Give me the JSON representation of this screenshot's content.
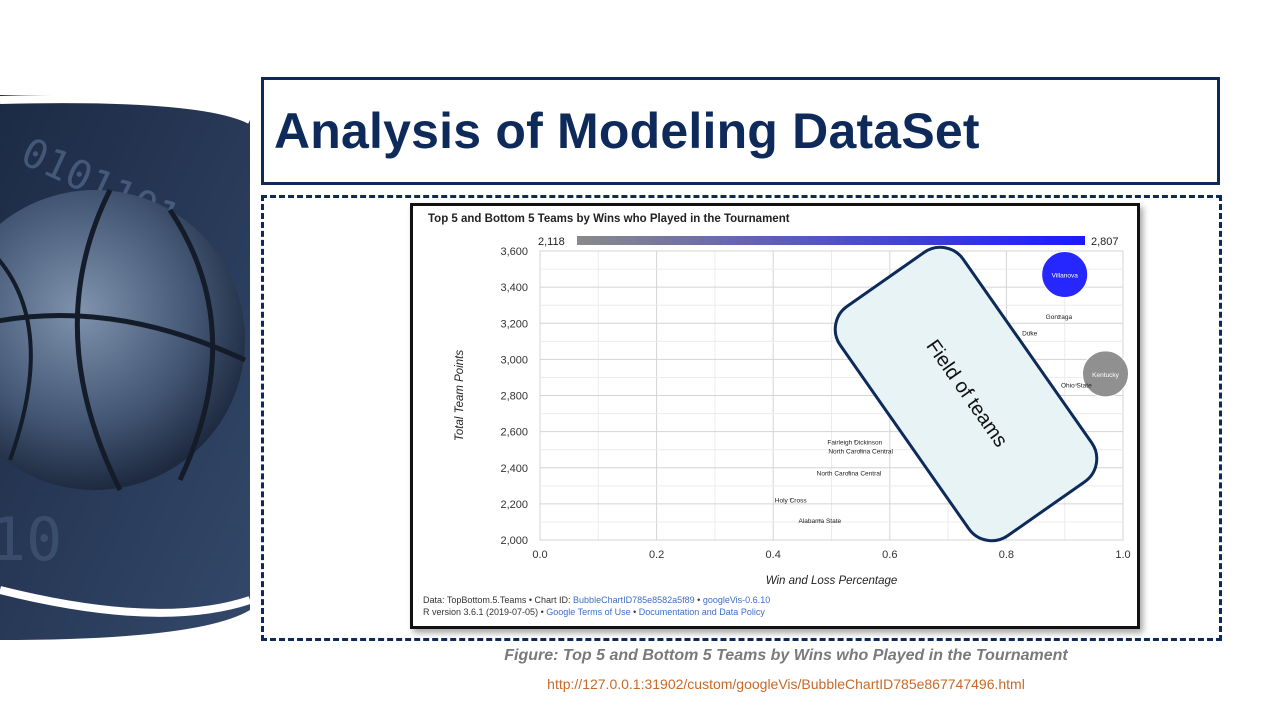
{
  "slide": {
    "title": "Analysis of Modeling DataSet",
    "caption": "Figure: Top 5 and Bottom 5 Teams by Wins who Played in the Tournament",
    "url": "http://127.0.0.1:31902/custom/googleVis/BubbleChartID785e867747496.html",
    "callout": "Field of teams"
  },
  "footer": {
    "line1_prefix": "Data: TopBottom.5.Teams • Chart ID: ",
    "chart_id": "BubbleChartID785e8582a5f89",
    "sep": " • ",
    "gvis": "googleVis-0.6.10",
    "line2_prefix": "R version 3.6.1 (2019-07-05) • ",
    "terms": "Google Terms of Use",
    "docs": "Documentation and Data Policy"
  },
  "colors": {
    "title": "#0e2a5a",
    "bubble_high": "#1a1aff",
    "bubble_low": "#8a8a8a",
    "callout_fill": "#e8f3f5"
  },
  "chart_data": {
    "type": "scatter",
    "title": "Top 5 and Bottom 5 Teams by Wins who Played in the Tournament",
    "xlabel": "Win and Loss Percentage",
    "ylabel": "Total Team Points",
    "xlim": [
      0.0,
      1.0
    ],
    "ylim": [
      2000,
      3600
    ],
    "x_ticks": [
      "0.0",
      "0.2",
      "0.4",
      "0.6",
      "0.8",
      "1.0"
    ],
    "y_ticks": [
      "2,000",
      "2,200",
      "2,400",
      "2,600",
      "2,800",
      "3,000",
      "3,200",
      "3,400",
      "3,600"
    ],
    "color_scale": {
      "min_label": "2,118",
      "max_label": "2,807",
      "min": 2118,
      "max": 2807
    },
    "grid": true,
    "points": [
      {
        "label": "Villanova",
        "x": 0.9,
        "y": 3470,
        "color_value": 2807,
        "size": 3.0
      },
      {
        "label": "Gonzaga",
        "x": 0.89,
        "y": 3240,
        "color_value": 2200,
        "size": 0.05
      },
      {
        "label": "Duke",
        "x": 0.84,
        "y": 3150,
        "color_value": 2200,
        "size": 0.05
      },
      {
        "label": "Kentucky",
        "x": 0.97,
        "y": 2920,
        "color_value": 2118,
        "size": 3.0
      },
      {
        "label": "Ohio State",
        "x": 0.92,
        "y": 2860,
        "color_value": 2200,
        "size": 0.05
      },
      {
        "label": "Fairleigh Dickinson",
        "x": 0.54,
        "y": 2545,
        "color_value": 2200,
        "size": 0.05
      },
      {
        "label": "North Carolina Central",
        "x": 0.55,
        "y": 2495,
        "color_value": 2200,
        "size": 0.05
      },
      {
        "label": "North Carolina Central",
        "x": 0.53,
        "y": 2375,
        "color_value": 2200,
        "size": 0.05
      },
      {
        "label": "Holy Cross",
        "x": 0.43,
        "y": 2225,
        "color_value": 2200,
        "size": 0.05
      },
      {
        "label": "Alabama State",
        "x": 0.48,
        "y": 2110,
        "color_value": 2200,
        "size": 0.05
      }
    ]
  }
}
